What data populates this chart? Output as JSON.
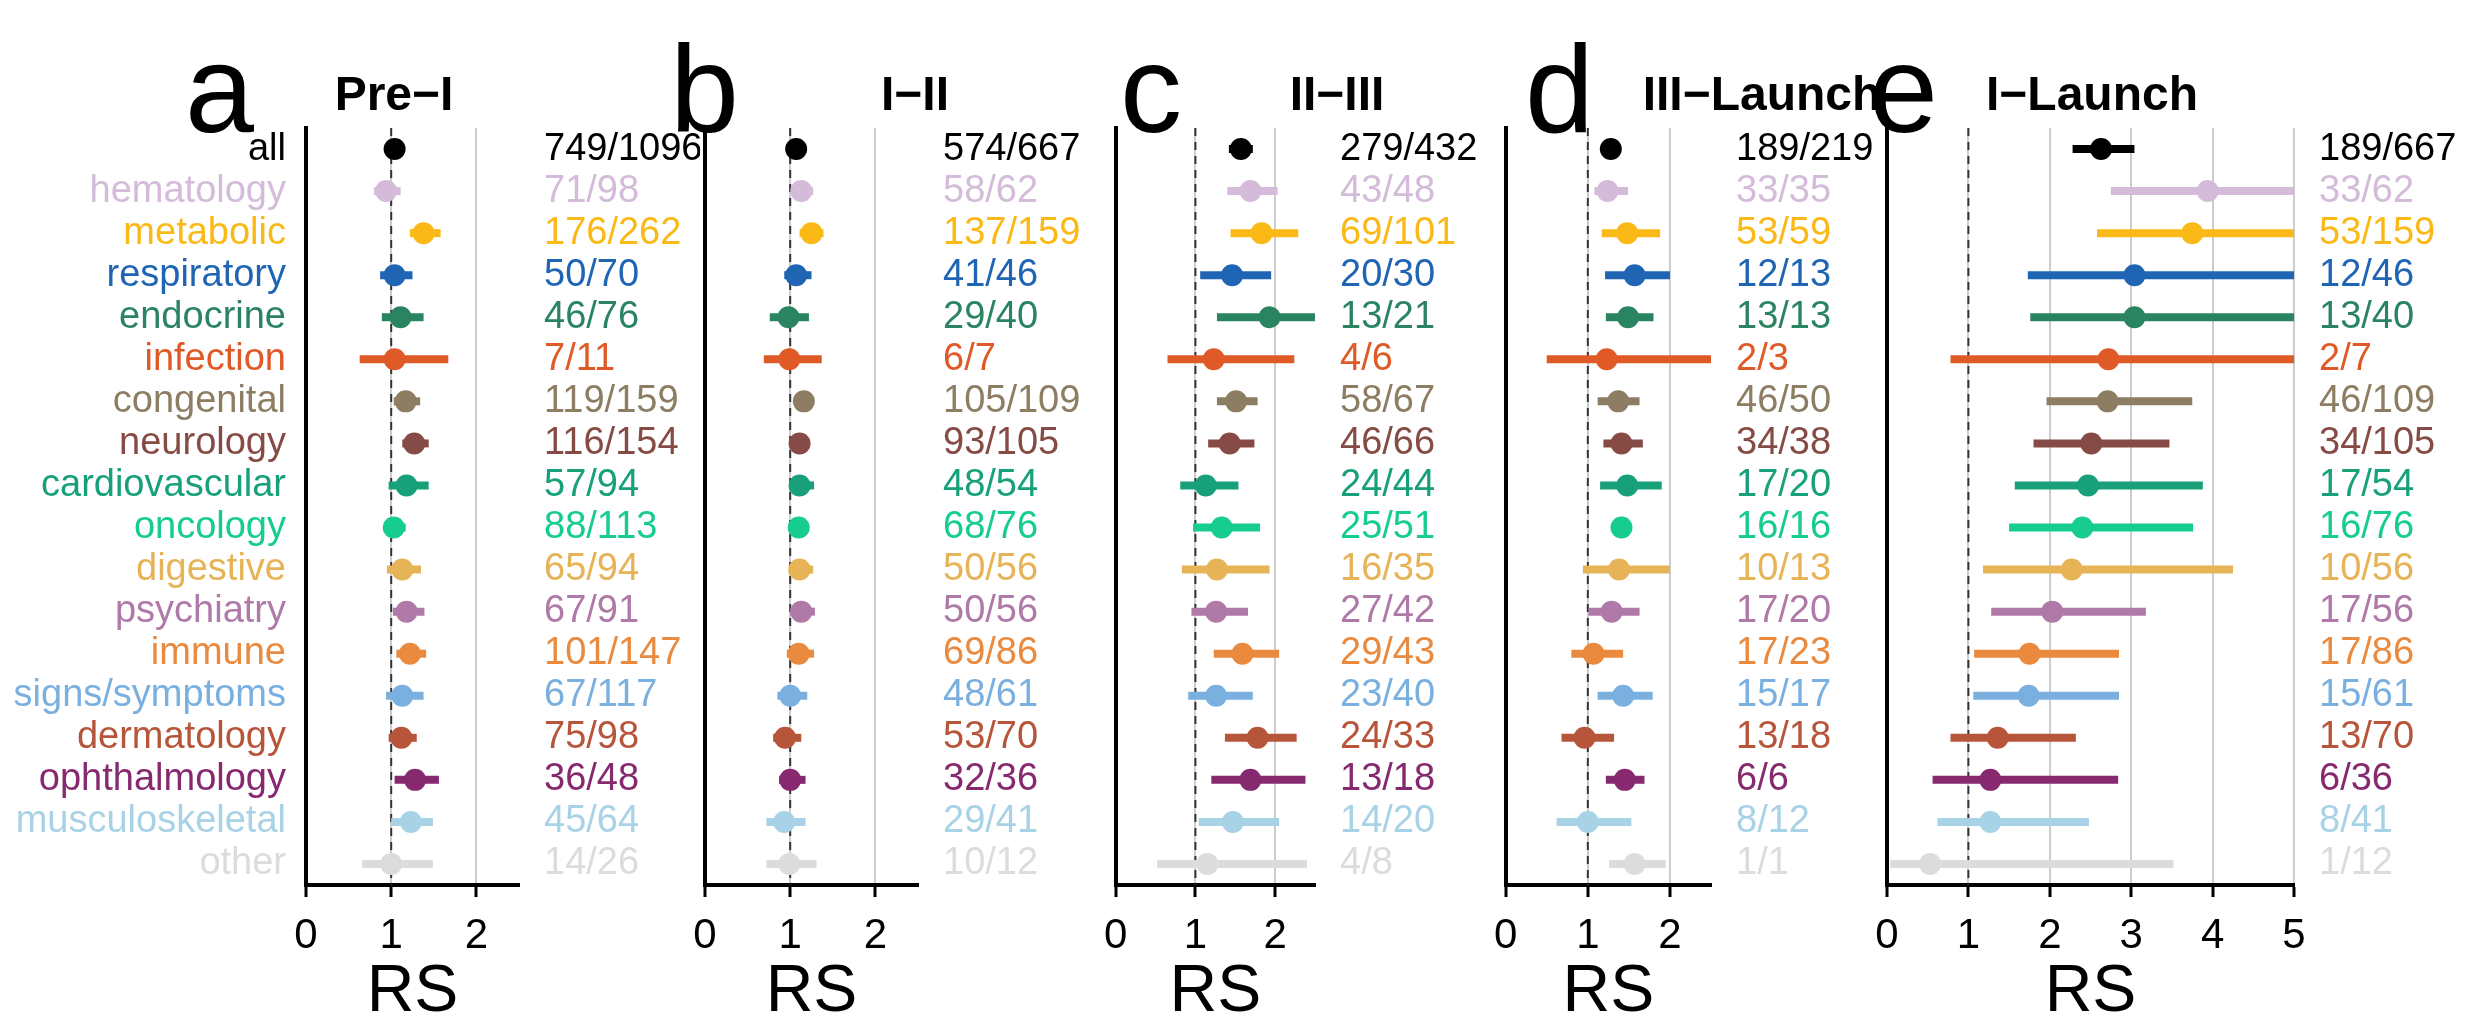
{
  "chart_data": [
    {
      "type": "scatter",
      "orientation": "horizontal",
      "title": "Pre−I",
      "annotations": [
        "a"
      ],
      "xlabel": "RS",
      "xlim": [
        0,
        2.5
      ],
      "xticks": [
        0,
        1,
        2
      ],
      "grid": "x",
      "marker": "circle",
      "ref_lines": [
        {
          "axis": "x",
          "value": 1,
          "line_style": "dashed",
          "color": "#333333"
        }
      ],
      "categories": [
        "all",
        "hematology",
        "metabolic",
        "respiratory",
        "endocrine",
        "infection",
        "congenital",
        "neurology",
        "cardiovascular",
        "oncology",
        "digestive",
        "psychiatry",
        "immune",
        "signs/symptoms",
        "dermatology",
        "ophthalmology",
        "musculoskeletal",
        "other"
      ],
      "colors": [
        "#000000",
        "#d4bbd9",
        "#fbb917",
        "#1f65b4",
        "#2a8461",
        "#e05a27",
        "#8d7e63",
        "#864b45",
        "#17a07a",
        "#16cc91",
        "#e7b357",
        "#b07aa8",
        "#e98a3e",
        "#7ab0e0",
        "#b6553a",
        "#86296f",
        "#a8d2e6",
        "#dcdcdc"
      ],
      "values": [
        1.04,
        0.94,
        1.38,
        1.04,
        1.11,
        1.04,
        1.17,
        1.27,
        1.18,
        1.03,
        1.13,
        1.18,
        1.22,
        1.13,
        1.12,
        1.28,
        1.23,
        1.0
      ],
      "errors": [
        null,
        [
          0.8,
          1.11
        ],
        [
          1.22,
          1.58
        ],
        [
          0.87,
          1.25
        ],
        [
          0.89,
          1.38
        ],
        [
          0.63,
          1.67
        ],
        [
          1.03,
          1.34
        ],
        [
          1.13,
          1.44
        ],
        [
          0.97,
          1.44
        ],
        [
          0.92,
          1.17
        ],
        [
          0.95,
          1.35
        ],
        [
          1.02,
          1.39
        ],
        [
          1.06,
          1.41
        ],
        [
          0.94,
          1.38
        ],
        [
          0.97,
          1.3
        ],
        [
          1.04,
          1.56
        ],
        [
          1.0,
          1.49
        ],
        [
          0.66,
          1.49
        ]
      ],
      "y2_categories": [
        "749/1096",
        "71/98",
        "176/262",
        "50/70",
        "46/76",
        "7/11",
        "119/159",
        "116/154",
        "57/94",
        "88/113",
        "65/94",
        "67/91",
        "101/147",
        "67/117",
        "75/98",
        "36/48",
        "45/64",
        "14/26"
      ]
    },
    {
      "type": "scatter",
      "orientation": "horizontal",
      "title": "I−II",
      "annotations": [
        "b"
      ],
      "xlabel": "RS",
      "xlim": [
        0,
        2.5
      ],
      "xticks": [
        0,
        1,
        2
      ],
      "grid": "x",
      "marker": "circle",
      "ref_lines": [
        {
          "axis": "x",
          "value": 1,
          "line_style": "dashed",
          "color": "#333333"
        }
      ],
      "categories": [
        null,
        null,
        null,
        null,
        null,
        null,
        null,
        null,
        null,
        null,
        null,
        null,
        null,
        null,
        null,
        null,
        null,
        null
      ],
      "colors": [
        "#000000",
        "#d4bbd9",
        "#fbb917",
        "#1f65b4",
        "#2a8461",
        "#e05a27",
        "#8d7e63",
        "#864b45",
        "#17a07a",
        "#16cc91",
        "#e7b357",
        "#b07aa8",
        "#e98a3e",
        "#7ab0e0",
        "#b6553a",
        "#86296f",
        "#a8d2e6",
        "#dcdcdc"
      ],
      "values": [
        1.07,
        1.13,
        1.25,
        1.07,
        0.98,
        0.99,
        1.16,
        1.11,
        1.11,
        1.1,
        1.11,
        1.13,
        1.1,
        1.0,
        0.94,
        1.0,
        0.93,
        0.99
      ],
      "errors": [
        null,
        [
          1.02,
          1.27
        ],
        [
          1.11,
          1.39
        ],
        [
          0.93,
          1.25
        ],
        [
          0.76,
          1.22
        ],
        [
          0.69,
          1.37
        ],
        null,
        null,
        [
          0.99,
          1.28
        ],
        null,
        [
          0.98,
          1.27
        ],
        [
          1.0,
          1.29
        ],
        [
          0.96,
          1.28
        ],
        [
          0.85,
          1.2
        ],
        [
          0.8,
          1.13
        ],
        [
          0.87,
          1.18
        ],
        [
          0.72,
          1.18
        ],
        [
          0.72,
          1.31
        ]
      ],
      "y2_categories": [
        "574/667",
        "58/62",
        "137/159",
        "41/46",
        "29/40",
        "6/7",
        "105/109",
        "93/105",
        "48/54",
        "68/76",
        "50/56",
        "50/56",
        "69/86",
        "48/61",
        "53/70",
        "32/36",
        "29/41",
        "10/12"
      ]
    },
    {
      "type": "scatter",
      "orientation": "horizontal",
      "title": "II−III",
      "annotations": [
        "c"
      ],
      "xlabel": "RS",
      "xlim": [
        0,
        2.5
      ],
      "xticks": [
        0,
        1,
        2
      ],
      "grid": "x",
      "marker": "circle",
      "ref_lines": [
        {
          "axis": "x",
          "value": 1,
          "line_style": "dashed",
          "color": "#333333"
        }
      ],
      "categories": [
        null,
        null,
        null,
        null,
        null,
        null,
        null,
        null,
        null,
        null,
        null,
        null,
        null,
        null,
        null,
        null,
        null,
        null
      ],
      "colors": [
        "#000000",
        "#d4bbd9",
        "#fbb917",
        "#1f65b4",
        "#2a8461",
        "#e05a27",
        "#8d7e63",
        "#864b45",
        "#17a07a",
        "#16cc91",
        "#e7b357",
        "#b07aa8",
        "#e98a3e",
        "#7ab0e0",
        "#b6553a",
        "#86296f",
        "#a8d2e6",
        "#dcdcdc"
      ],
      "values": [
        1.57,
        1.69,
        1.83,
        1.46,
        1.93,
        1.23,
        1.51,
        1.43,
        1.13,
        1.33,
        1.27,
        1.26,
        1.59,
        1.26,
        1.78,
        1.69,
        1.47,
        1.15
      ],
      "errors": [
        [
          1.42,
          1.72
        ],
        [
          1.4,
          2.03
        ],
        [
          1.44,
          2.29
        ],
        [
          1.06,
          1.95
        ],
        [
          1.27,
          2.5
        ],
        [
          0.65,
          2.24
        ],
        [
          1.27,
          1.78
        ],
        [
          1.16,
          1.74
        ],
        [
          0.81,
          1.54
        ],
        [
          0.97,
          1.81
        ],
        [
          0.83,
          1.93
        ],
        [
          0.95,
          1.66
        ],
        [
          1.23,
          2.05
        ],
        [
          0.91,
          1.72
        ],
        [
          1.37,
          2.27
        ],
        [
          1.2,
          2.38
        ],
        [
          1.04,
          2.05
        ],
        [
          0.52,
          2.4
        ]
      ],
      "y2_categories": [
        "279/432",
        "43/48",
        "69/101",
        "20/30",
        "13/21",
        "4/6",
        "58/67",
        "46/66",
        "24/44",
        "25/51",
        "16/35",
        "27/42",
        "29/43",
        "23/40",
        "24/33",
        "13/18",
        "14/20",
        "4/8"
      ]
    },
    {
      "type": "scatter",
      "orientation": "horizontal",
      "title": "III−Launch",
      "annotations": [
        "d"
      ],
      "xlabel": "RS",
      "xlim": [
        0,
        2.5
      ],
      "xticks": [
        0,
        1,
        2
      ],
      "grid": "x",
      "marker": "circle",
      "ref_lines": [
        {
          "axis": "x",
          "value": 1,
          "line_style": "dashed",
          "color": "#333333"
        }
      ],
      "categories": [
        null,
        null,
        null,
        null,
        null,
        null,
        null,
        null,
        null,
        null,
        null,
        null,
        null,
        null,
        null,
        null,
        null,
        null
      ],
      "colors": [
        "#000000",
        "#d4bbd9",
        "#fbb917",
        "#1f65b4",
        "#2a8461",
        "#e05a27",
        "#8d7e63",
        "#864b45",
        "#17a07a",
        "#16cc91",
        "#e7b357",
        "#b07aa8",
        "#e98a3e",
        "#7ab0e0",
        "#b6553a",
        "#86296f",
        "#a8d2e6",
        "#dcdcdc"
      ],
      "values": [
        1.28,
        1.24,
        1.48,
        1.57,
        1.49,
        1.23,
        1.37,
        1.41,
        1.48,
        1.41,
        1.38,
        1.29,
        1.07,
        1.43,
        0.96,
        1.45,
        1.0,
        1.57
      ],
      "errors": [
        null,
        [
          1.08,
          1.49
        ],
        [
          1.17,
          1.88
        ],
        [
          1.21,
          2.0
        ],
        [
          1.22,
          1.8
        ],
        [
          0.5,
          2.5
        ],
        [
          1.12,
          1.63
        ],
        [
          1.19,
          1.67
        ],
        [
          1.15,
          1.9
        ],
        null,
        [
          0.94,
          2.0
        ],
        [
          1.01,
          1.63
        ],
        [
          0.8,
          1.43
        ],
        [
          1.12,
          1.79
        ],
        [
          0.68,
          1.32
        ],
        [
          1.22,
          1.69
        ],
        [
          0.62,
          1.53
        ],
        [
          1.26,
          1.95
        ]
      ],
      "y2_categories": [
        "189/219",
        "33/35",
        "53/59",
        "12/13",
        "13/13",
        "2/3",
        "46/50",
        "34/38",
        "17/20",
        "16/16",
        "10/13",
        "17/20",
        "17/23",
        "15/17",
        "13/18",
        "6/6",
        "8/12",
        "1/1"
      ]
    },
    {
      "type": "scatter",
      "orientation": "horizontal",
      "title": "I−Launch",
      "annotations": [
        "e"
      ],
      "xlabel": "RS",
      "xlim": [
        0,
        5
      ],
      "xticks": [
        0,
        1,
        2,
        3,
        4,
        5
      ],
      "grid": "x",
      "marker": "circle",
      "ref_lines": [
        {
          "axis": "x",
          "value": 1,
          "line_style": "dashed",
          "color": "#333333"
        }
      ],
      "categories": [
        null,
        null,
        null,
        null,
        null,
        null,
        null,
        null,
        null,
        null,
        null,
        null,
        null,
        null,
        null,
        null,
        null,
        null
      ],
      "colors": [
        "#000000",
        "#d4bbd9",
        "#fbb917",
        "#1f65b4",
        "#2a8461",
        "#e05a27",
        "#8d7e63",
        "#864b45",
        "#17a07a",
        "#16cc91",
        "#e7b357",
        "#b07aa8",
        "#e98a3e",
        "#7ab0e0",
        "#b6553a",
        "#86296f",
        "#a8d2e6",
        "#dcdcdc"
      ],
      "values": [
        2.63,
        3.94,
        3.75,
        3.04,
        3.04,
        2.72,
        2.71,
        2.51,
        2.47,
        2.4,
        2.27,
        2.03,
        1.75,
        1.74,
        1.36,
        1.27,
        1.27,
        0.53
      ],
      "errors": [
        [
          2.28,
          3.04
        ],
        [
          2.75,
          5
        ],
        [
          2.58,
          5
        ],
        [
          1.73,
          5
        ],
        [
          1.76,
          5
        ],
        [
          0.78,
          5
        ],
        [
          1.96,
          3.75
        ],
        [
          1.8,
          3.47
        ],
        [
          1.57,
          3.88
        ],
        [
          1.5,
          3.76
        ],
        [
          1.18,
          4.25
        ],
        [
          1.28,
          3.18
        ],
        [
          1.07,
          2.85
        ],
        [
          1.06,
          2.85
        ],
        [
          0.78,
          2.32
        ],
        [
          0.56,
          2.84
        ],
        [
          0.62,
          2.48
        ],
        [
          0.04,
          3.52
        ]
      ],
      "y2_categories": [
        "189/667",
        "33/62",
        "53/159",
        "12/46",
        "13/40",
        "2/7",
        "46/109",
        "34/105",
        "17/54",
        "16/76",
        "10/56",
        "17/56",
        "17/86",
        "15/61",
        "13/70",
        "6/36",
        "8/41",
        "1/12"
      ]
    }
  ]
}
